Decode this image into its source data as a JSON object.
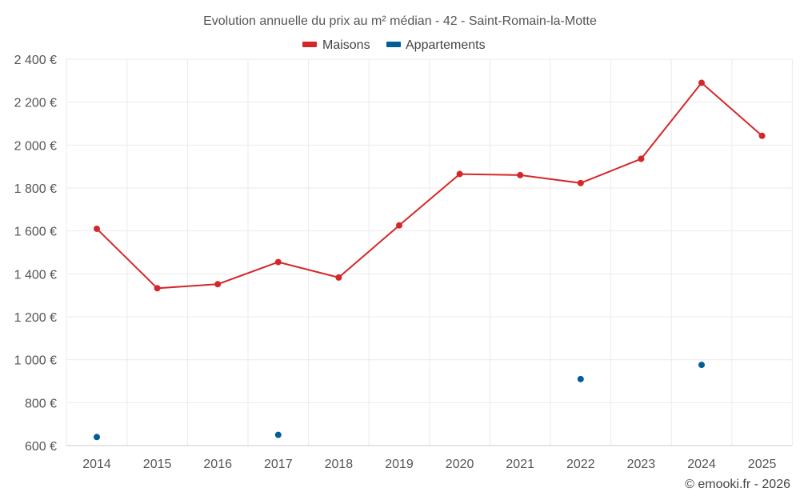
{
  "chart_data": {
    "type": "line",
    "title": "Evolution annuelle du prix au m² médian - 42 - Saint-Romain-la-Motte",
    "xlabel": "",
    "ylabel": "",
    "categories": [
      "2014",
      "2015",
      "2016",
      "2017",
      "2018",
      "2019",
      "2020",
      "2021",
      "2022",
      "2023",
      "2024",
      "2025"
    ],
    "ylim": [
      600,
      2400
    ],
    "yticks": [
      600,
      800,
      1000,
      1200,
      1400,
      1600,
      1800,
      2000,
      2200,
      2400
    ],
    "ytick_labels": [
      "600 €",
      "800 €",
      "1 000 €",
      "1 200 €",
      "1 400 €",
      "1 600 €",
      "1 800 €",
      "2 000 €",
      "2 200 €",
      "2 400 €"
    ],
    "grid": true,
    "legend_position": "top-center",
    "series": [
      {
        "name": "Maisons",
        "color": "#d62728",
        "line": true,
        "values": [
          1610,
          1333,
          1352,
          1455,
          1383,
          1626,
          1865,
          1860,
          1823,
          1936,
          2290,
          2043
        ]
      },
      {
        "name": "Appartements",
        "color": "#005f99",
        "line": false,
        "values": [
          640,
          null,
          null,
          650,
          null,
          null,
          null,
          null,
          910,
          null,
          976,
          null
        ]
      }
    ]
  },
  "credit": "© emooki.fr - 2026"
}
